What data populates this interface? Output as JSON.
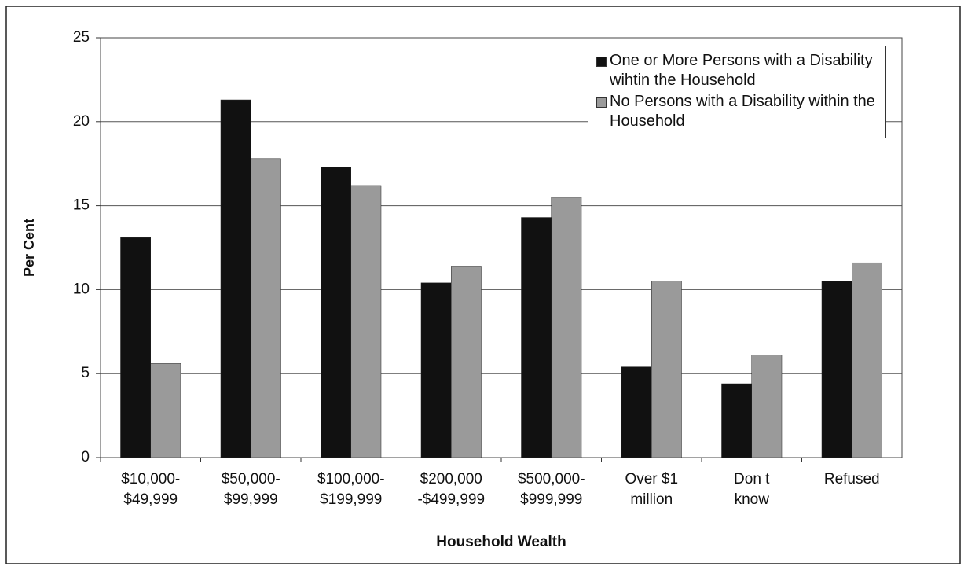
{
  "chart_data": {
    "type": "bar",
    "x_label": "Household Wealth",
    "y_label": "Per Cent",
    "categories": [
      [
        "$10,000-",
        "$49,999"
      ],
      [
        "$50,000-",
        "$99,999"
      ],
      [
        "$100,000-",
        "$199,999"
      ],
      [
        "$200,000",
        "-$499,999"
      ],
      [
        "$500,000-",
        "$999,999"
      ],
      [
        "Over $1",
        "million"
      ],
      [
        "Don t",
        "know"
      ],
      [
        "Refused"
      ]
    ],
    "series": [
      {
        "name": "One or More Persons with a Disability wihtin the Household",
        "color": "#111111",
        "values": [
          13.1,
          21.3,
          17.3,
          10.4,
          14.3,
          5.4,
          4.4,
          10.5
        ]
      },
      {
        "name": "No Persons with a Disability within the Household",
        "color": "#9a9a9a",
        "values": [
          5.6,
          17.8,
          16.2,
          11.4,
          15.5,
          10.5,
          6.1,
          11.6
        ]
      }
    ],
    "ylim": [
      0,
      25
    ],
    "yticks": [
      0,
      5,
      10,
      15,
      20,
      25
    ],
    "grid": true,
    "legend": "top-right"
  }
}
